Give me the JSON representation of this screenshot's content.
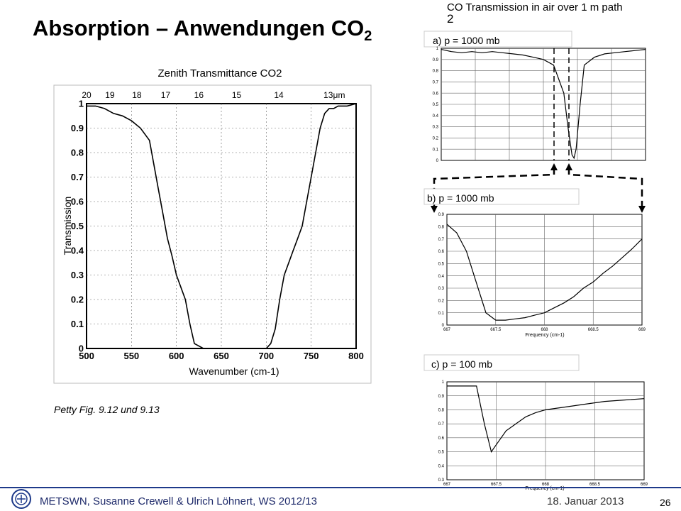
{
  "slide": {
    "title": "Absorption – Anwendungen CO",
    "title_sub": "2",
    "right_title": "CO   Transmission in air over 1 m path",
    "right_title_sub": "2",
    "caption": "Petty Fig. 9.12 und 9.13",
    "footer": "METSWN, Susanne Crewell & Ulrich Löhnert,  WS 2012/13",
    "date": "18. Januar 2013",
    "page_number": "26",
    "colors": {
      "footer_line": "#1e3a8a",
      "footer_text": "#1e2a6a",
      "plot_line": "#000000",
      "grid": "#666666"
    }
  },
  "chart_data": [
    {
      "type": "line",
      "title": "Zenith Transmittance CO2",
      "xlabel": "Wavenumber (cm-1)",
      "ylabel": "Transmission",
      "xlim": [
        500,
        800
      ],
      "ylim": [
        0,
        1
      ],
      "grid": true,
      "x_ticks": [
        "500",
        "550",
        "600",
        "650",
        "700",
        "750",
        "800"
      ],
      "y_ticks": [
        "0",
        "0.1",
        "0.2",
        "0.3",
        "0.4",
        "0.5",
        "0.6",
        "0.7",
        "0.8",
        "0.9",
        "1"
      ],
      "top_axis_label": "μm",
      "top_ticks": [
        "20",
        "19",
        "18",
        "17",
        "16",
        "15",
        "14",
        "13"
      ],
      "top_ticks_wavenumber": [
        500,
        526,
        556,
        588,
        625,
        667,
        714,
        769
      ],
      "series": [
        {
          "x": [
            500,
            510,
            520,
            530,
            540,
            550,
            560,
            570,
            575,
            580,
            585,
            590,
            595,
            600,
            605,
            610,
            615,
            620,
            630,
            640,
            650,
            660,
            670,
            680,
            690,
            700,
            705,
            710,
            715,
            720,
            725,
            730,
            735,
            740,
            745,
            750,
            755,
            760,
            765,
            770,
            775,
            780,
            790,
            800
          ],
          "y": [
            0.99,
            0.99,
            0.98,
            0.96,
            0.95,
            0.93,
            0.9,
            0.85,
            0.75,
            0.65,
            0.55,
            0.45,
            0.38,
            0.3,
            0.25,
            0.2,
            0.1,
            0.02,
            0.0,
            0.0,
            0.0,
            0.0,
            0.0,
            0.0,
            0.0,
            0.0,
            0.02,
            0.08,
            0.2,
            0.3,
            0.35,
            0.4,
            0.45,
            0.5,
            0.6,
            0.7,
            0.8,
            0.9,
            0.96,
            0.98,
            0.98,
            0.99,
            0.99,
            1.0
          ]
        }
      ]
    },
    {
      "type": "line",
      "title": "a)  p = 1000 mb",
      "ylim": [
        0,
        1
      ],
      "grid": true,
      "y_ticks": [
        "0",
        "0.1",
        "0.2",
        "0.3",
        "0.4",
        "0.5",
        "0.6",
        "0.7",
        "0.8",
        "0.9",
        "1"
      ],
      "series": [
        {
          "x": [
            0,
            0.05,
            0.1,
            0.15,
            0.2,
            0.25,
            0.3,
            0.35,
            0.4,
            0.45,
            0.5,
            0.55,
            0.6,
            0.62,
            0.64,
            0.65,
            0.66,
            0.68,
            0.7,
            0.75,
            0.8,
            0.85,
            0.9,
            0.95,
            1.0
          ],
          "y": [
            0.99,
            0.97,
            0.96,
            0.97,
            0.96,
            0.97,
            0.96,
            0.95,
            0.94,
            0.92,
            0.9,
            0.85,
            0.6,
            0.3,
            0.05,
            0.02,
            0.1,
            0.5,
            0.85,
            0.92,
            0.95,
            0.96,
            0.97,
            0.98,
            0.99
          ]
        }
      ]
    },
    {
      "type": "line",
      "title": "b)  p = 1000 mb",
      "xlabel": "Frequency (cm-1)",
      "x_ticks": [
        "667",
        "667.5",
        "668",
        "668.5",
        "669"
      ],
      "xlim": [
        667,
        669
      ],
      "ylim": [
        0,
        0.9
      ],
      "grid": true,
      "y_ticks": [
        "0",
        "0.1",
        "0.2",
        "0.3",
        "0.4",
        "0.5",
        "0.6",
        "0.7",
        "0.8",
        "0.9"
      ],
      "series": [
        {
          "x": [
            667.0,
            667.1,
            667.2,
            667.3,
            667.4,
            667.5,
            667.6,
            667.7,
            667.8,
            667.9,
            668.0,
            668.1,
            668.2,
            668.3,
            668.4,
            668.5,
            668.6,
            668.7,
            668.8,
            668.9,
            669.0
          ],
          "y": [
            0.82,
            0.75,
            0.6,
            0.35,
            0.1,
            0.04,
            0.04,
            0.05,
            0.06,
            0.08,
            0.1,
            0.14,
            0.18,
            0.23,
            0.3,
            0.35,
            0.42,
            0.48,
            0.55,
            0.62,
            0.7
          ]
        }
      ]
    },
    {
      "type": "line",
      "title": "c)  p = 100 mb",
      "xlabel": "Frequency (cm-1)",
      "x_ticks": [
        "667",
        "667.5",
        "668",
        "668.5",
        "669"
      ],
      "xlim": [
        667,
        669
      ],
      "ylim": [
        0.3,
        1
      ],
      "grid": true,
      "y_ticks": [
        "0.3",
        "0.4",
        "0.5",
        "0.6",
        "0.7",
        "0.8",
        "0.9",
        "1"
      ],
      "series": [
        {
          "x": [
            667.0,
            667.3,
            667.38,
            667.45,
            667.5,
            667.6,
            667.7,
            667.8,
            667.9,
            668.0,
            668.2,
            668.4,
            668.6,
            668.8,
            669.0
          ],
          "y": [
            0.97,
            0.97,
            0.7,
            0.5,
            0.55,
            0.65,
            0.7,
            0.75,
            0.78,
            0.8,
            0.82,
            0.84,
            0.86,
            0.87,
            0.88
          ]
        }
      ]
    }
  ]
}
